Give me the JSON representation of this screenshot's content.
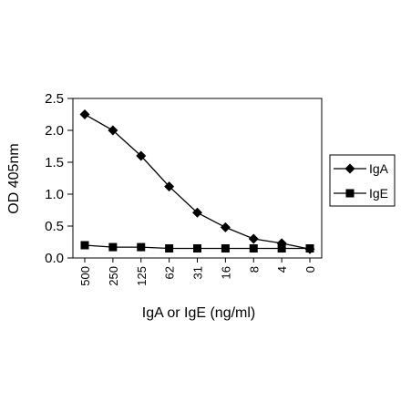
{
  "chart_data": {
    "type": "line",
    "categories": [
      "500",
      "250",
      "125",
      "62",
      "31",
      "16",
      "8",
      "4",
      "0"
    ],
    "series": [
      {
        "name": "IgA",
        "marker": "diamond",
        "values": [
          2.25,
          2.0,
          1.6,
          1.12,
          0.71,
          0.48,
          0.3,
          0.23,
          0.14
        ]
      },
      {
        "name": "IgE",
        "marker": "square",
        "values": [
          0.2,
          0.17,
          0.17,
          0.15,
          0.15,
          0.15,
          0.15,
          0.15,
          0.15
        ]
      }
    ],
    "title": "",
    "xlabel": "IgA or IgE (ng/ml)",
    "ylabel": "OD 405nm",
    "ylim": [
      0,
      2.5
    ],
    "yticks": [
      "0.0",
      "0.5",
      "1.0",
      "1.5",
      "2.0",
      "2.5"
    ],
    "grid": false,
    "legend": "right",
    "color": "#000000"
  }
}
